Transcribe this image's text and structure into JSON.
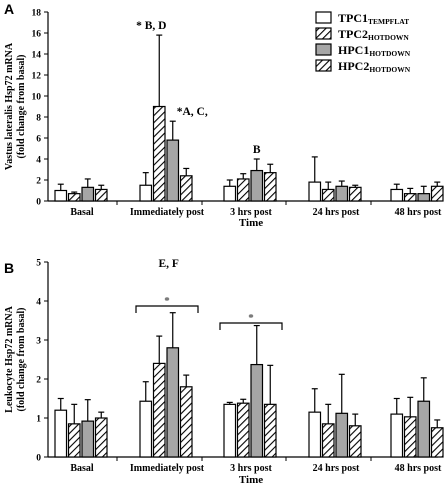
{
  "chart_data": [
    {
      "type": "bar",
      "panel_label": "A",
      "categories": [
        "Basal",
        "Immediately post",
        "3 hrs post",
        "24 hrs post",
        "48 hrs post"
      ],
      "xlabel": "Time",
      "ylabel_line1": "Vastus lateralis Hsp72 mRNA",
      "ylabel_line2": "(fold change from basal)",
      "ylim": [
        0,
        18
      ],
      "yticks": [
        0,
        2,
        4,
        6,
        8,
        10,
        12,
        14,
        16,
        18
      ],
      "grid": false,
      "legend_position": "top-right",
      "legend": [
        {
          "main": "TPC1",
          "sub": "TEMPFLAT"
        },
        {
          "main": "TPC2",
          "sub": "HOTDOWN"
        },
        {
          "main": "HPC1",
          "sub": "HOTDOWN"
        },
        {
          "main": "HPC2",
          "sub": "HOTDOWN"
        }
      ],
      "series": [
        {
          "values": [
            1.0,
            1.5,
            1.4,
            1.8,
            1.1
          ],
          "errors": [
            0.6,
            1.2,
            0.6,
            2.4,
            0.5
          ]
        },
        {
          "values": [
            0.7,
            9.0,
            2.1,
            1.1,
            0.7
          ],
          "errors": [
            0.15,
            6.8,
            0.5,
            0.7,
            0.5
          ]
        },
        {
          "values": [
            1.3,
            5.8,
            2.9,
            1.4,
            0.7
          ],
          "errors": [
            0.8,
            1.8,
            1.1,
            0.5,
            0.7
          ]
        },
        {
          "values": [
            1.1,
            2.4,
            2.7,
            1.3,
            1.4
          ],
          "errors": [
            0.4,
            0.7,
            0.8,
            0.2,
            0.4
          ]
        }
      ],
      "annotations": [
        {
          "text": "* B, D",
          "category": 1,
          "series": 1
        },
        {
          "text": "*A, C,",
          "category": 1,
          "series": 2
        },
        {
          "text": "B",
          "category": 2,
          "series": 2
        }
      ]
    },
    {
      "type": "bar",
      "panel_label": "B",
      "categories": [
        "Basal",
        "Immediately post",
        "3 hrs post",
        "24 hrs post",
        "48 hrs post"
      ],
      "xlabel": "Time",
      "ylabel_line1": "Leukocyte Hsp72 mRNA",
      "ylabel_line2": "(fold change from basal)",
      "ylim": [
        0,
        5
      ],
      "yticks": [
        0,
        1,
        2,
        3,
        4,
        5
      ],
      "grid": false,
      "series": [
        {
          "values": [
            1.2,
            1.43,
            1.35,
            1.15,
            1.1
          ],
          "errors": [
            0.3,
            0.5,
            0.05,
            0.6,
            0.4
          ]
        },
        {
          "values": [
            0.85,
            2.4,
            1.38,
            0.85,
            1.03
          ],
          "errors": [
            0.5,
            0.7,
            0.1,
            0.5,
            0.5
          ]
        },
        {
          "values": [
            0.92,
            2.8,
            2.37,
            1.12,
            1.43
          ],
          "errors": [
            0.55,
            0.9,
            1.0,
            1.0,
            0.6
          ]
        },
        {
          "values": [
            1.0,
            1.8,
            1.35,
            0.8,
            0.75
          ],
          "errors": [
            0.15,
            0.3,
            1.0,
            0.3,
            0.2
          ]
        }
      ],
      "annotations": [
        {
          "text": "E, F",
          "category": 1,
          "series": 2
        }
      ],
      "brackets": [
        {
          "text": "*",
          "category": 1
        },
        {
          "text": "*",
          "category": 2
        }
      ]
    }
  ]
}
